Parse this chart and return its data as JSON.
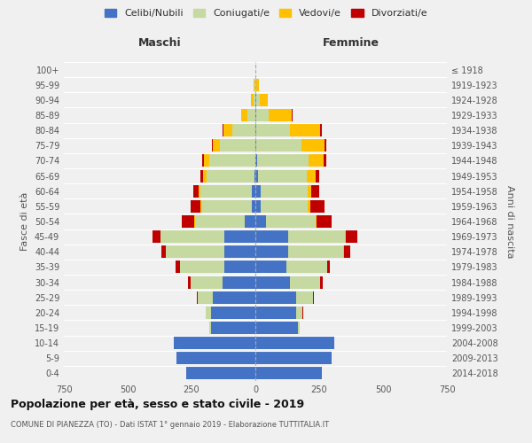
{
  "age_groups": [
    "0-4",
    "5-9",
    "10-14",
    "15-19",
    "20-24",
    "25-29",
    "30-34",
    "35-39",
    "40-44",
    "45-49",
    "50-54",
    "55-59",
    "60-64",
    "65-69",
    "70-74",
    "75-79",
    "80-84",
    "85-89",
    "90-94",
    "95-99",
    "100+"
  ],
  "birth_years": [
    "2014-2018",
    "2009-2013",
    "2004-2008",
    "1999-2003",
    "1994-1998",
    "1989-1993",
    "1984-1988",
    "1979-1983",
    "1974-1978",
    "1969-1973",
    "1964-1968",
    "1959-1963",
    "1954-1958",
    "1949-1953",
    "1944-1948",
    "1939-1943",
    "1934-1938",
    "1929-1933",
    "1924-1928",
    "1919-1923",
    "≤ 1918"
  ],
  "maschi": {
    "celibe": [
      270,
      310,
      320,
      175,
      175,
      165,
      130,
      120,
      120,
      120,
      40,
      15,
      15,
      5,
      0,
      0,
      0,
      0,
      0,
      0,
      0
    ],
    "coniugato": [
      0,
      0,
      0,
      5,
      20,
      60,
      125,
      175,
      230,
      250,
      195,
      195,
      200,
      185,
      180,
      140,
      90,
      30,
      8,
      3,
      0
    ],
    "vedovo": [
      0,
      0,
      0,
      0,
      0,
      0,
      0,
      1,
      2,
      3,
      3,
      5,
      8,
      15,
      20,
      25,
      35,
      25,
      8,
      5,
      0
    ],
    "divorziato": [
      0,
      0,
      0,
      0,
      0,
      3,
      8,
      15,
      15,
      30,
      50,
      40,
      20,
      10,
      8,
      5,
      3,
      0,
      0,
      0,
      0
    ]
  },
  "femmine": {
    "nubile": [
      260,
      300,
      310,
      165,
      160,
      160,
      135,
      120,
      130,
      130,
      40,
      20,
      20,
      10,
      8,
      5,
      5,
      3,
      2,
      0,
      0
    ],
    "coniugata": [
      0,
      0,
      0,
      8,
      25,
      65,
      120,
      160,
      215,
      220,
      195,
      185,
      185,
      190,
      200,
      175,
      130,
      50,
      15,
      5,
      1
    ],
    "vedova": [
      0,
      0,
      0,
      0,
      0,
      0,
      0,
      1,
      2,
      3,
      5,
      10,
      15,
      35,
      60,
      90,
      120,
      90,
      30,
      10,
      0
    ],
    "divorziata": [
      0,
      0,
      0,
      0,
      2,
      3,
      8,
      10,
      25,
      45,
      60,
      55,
      30,
      15,
      10,
      8,
      5,
      3,
      0,
      0,
      0
    ]
  },
  "colors": {
    "celibe": "#4472c4",
    "coniugato": "#c5d9a0",
    "vedovo": "#ffc000",
    "divorziato": "#c00000"
  },
  "title": "Popolazione per età, sesso e stato civile - 2019",
  "subtitle": "COMUNE DI PIANEZZA (TO) - Dati ISTAT 1° gennaio 2019 - Elaborazione TUTTITALIA.IT",
  "xlabel_left": "Maschi",
  "xlabel_right": "Femmine",
  "ylabel_left": "Fasce di età",
  "ylabel_right": "Anni di nascita",
  "xlim": 750,
  "legend_labels": [
    "Celibi/Nubili",
    "Coniugati/e",
    "Vedovi/e",
    "Divorziati/e"
  ],
  "background_color": "#f0f0f0"
}
